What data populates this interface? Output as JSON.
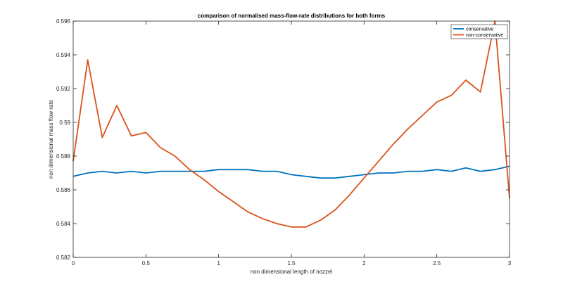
{
  "chart_data": {
    "type": "line",
    "title": "comparison of normalised mass-flow-rate distributions for both forms",
    "xlabel": "non dimensional length of nozzel",
    "ylabel": "non dimensional mass flow rate",
    "xlim": [
      0,
      3
    ],
    "ylim": [
      0.582,
      0.596
    ],
    "xticks": [
      0,
      0.5,
      1,
      1.5,
      2,
      2.5,
      3
    ],
    "xtick_labels": [
      "0",
      "0.5",
      "1",
      "1.5",
      "2",
      "2.5",
      "3"
    ],
    "yticks": [
      0.582,
      0.584,
      0.586,
      0.588,
      0.59,
      0.592,
      0.594,
      0.596
    ],
    "ytick_labels": [
      "0.582",
      "0.584",
      "0.586",
      "0.588",
      "0.59",
      "0.592",
      "0.594",
      "0.596"
    ],
    "grid": false,
    "legend_position": "top-right",
    "x": [
      0,
      0.1,
      0.2,
      0.3,
      0.4,
      0.5,
      0.6,
      0.7,
      0.8,
      0.9,
      1.0,
      1.1,
      1.2,
      1.3,
      1.4,
      1.5,
      1.6,
      1.7,
      1.8,
      1.9,
      2.0,
      2.1,
      2.2,
      2.3,
      2.4,
      2.5,
      2.6,
      2.7,
      2.8,
      2.9,
      3.0
    ],
    "series": [
      {
        "name": "conservative",
        "color": "#0072bd",
        "values": [
          0.5868,
          0.587,
          0.5871,
          0.587,
          0.5871,
          0.587,
          0.5871,
          0.5871,
          0.5871,
          0.5871,
          0.5872,
          0.5872,
          0.5872,
          0.5871,
          0.5871,
          0.5869,
          0.5868,
          0.5867,
          0.5867,
          0.5868,
          0.5869,
          0.587,
          0.587,
          0.5871,
          0.5871,
          0.5872,
          0.5871,
          0.5873,
          0.5871,
          0.5872,
          0.5874
        ]
      },
      {
        "name": "non-conservative",
        "color": "#d95319",
        "values": [
          0.5877,
          0.5937,
          0.5891,
          0.591,
          0.5892,
          0.5894,
          0.5885,
          0.588,
          0.5872,
          0.5866,
          0.5859,
          0.5853,
          0.5847,
          0.5843,
          0.584,
          0.5838,
          0.5838,
          0.5842,
          0.5848,
          0.5857,
          0.5867,
          0.5877,
          0.5887,
          0.5896,
          0.5904,
          0.5912,
          0.5916,
          0.5925,
          0.5918,
          0.596,
          0.5855
        ]
      }
    ]
  }
}
